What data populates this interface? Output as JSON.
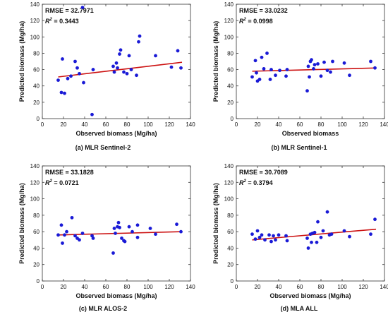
{
  "panel_captions": [
    "(a) MLR Sentinel-2",
    "(b) MLR Sentinel-1",
    "(c) MLR ALOS-2",
    "(d) MLA ALL"
  ],
  "colors": {
    "points": "#1a1ad6",
    "fit_line": "#cc1111",
    "axis": "#333333",
    "text": "#111111"
  },
  "chart_data": [
    {
      "type": "scatter",
      "title": "",
      "caption": "(a) MLR Sentinel-2",
      "xlabel": "Observed biomass (Mg/ha)",
      "ylabel": "Predicted biomass (Mg/ha)",
      "xlim": [
        0,
        140
      ],
      "ylim": [
        0,
        140
      ],
      "xticks": [
        0,
        20,
        40,
        60,
        80,
        100,
        120,
        140
      ],
      "yticks": [
        0,
        20,
        40,
        60,
        80,
        100,
        120,
        140
      ],
      "annotations": {
        "rmse": "RMSE = 32.7971",
        "r2_label": "R",
        "r2_exp": "2",
        "r2_value": " = 0.3443"
      },
      "fit_line": {
        "x": [
          15,
          132
        ],
        "y": [
          51,
          69
        ]
      },
      "points": [
        [
          15,
          47
        ],
        [
          18,
          32
        ],
        [
          19,
          73
        ],
        [
          21,
          31
        ],
        [
          24,
          49
        ],
        [
          27,
          52
        ],
        [
          31,
          70
        ],
        [
          33,
          62
        ],
        [
          35,
          55
        ],
        [
          38,
          136
        ],
        [
          39,
          44
        ],
        [
          47,
          5
        ],
        [
          48,
          60
        ],
        [
          67,
          64
        ],
        [
          68,
          57
        ],
        [
          70,
          68
        ],
        [
          71,
          62
        ],
        [
          73,
          79
        ],
        [
          74,
          84
        ],
        [
          77,
          57
        ],
        [
          80,
          55
        ],
        [
          82,
          77
        ],
        [
          84,
          60
        ],
        [
          89,
          53
        ],
        [
          91,
          94
        ],
        [
          92,
          101
        ],
        [
          107,
          77
        ],
        [
          122,
          63
        ],
        [
          128,
          83
        ],
        [
          131,
          62
        ]
      ]
    },
    {
      "type": "scatter",
      "title": "",
      "caption": "(b) MLR Sentinel-1",
      "xlabel": "Observed biomass",
      "ylabel": "Predicted biomass (Mg/ha)",
      "xlim": [
        0,
        140
      ],
      "ylim": [
        0,
        140
      ],
      "xticks": [
        0,
        20,
        40,
        60,
        80,
        100,
        120,
        140
      ],
      "yticks": [
        0,
        20,
        40,
        60,
        80,
        100,
        120,
        140
      ],
      "annotations": {
        "rmse": "RMSE = 33.0232",
        "r2_label": "R",
        "r2_exp": "2",
        "r2_value": " = 0.0998"
      },
      "fit_line": {
        "x": [
          15,
          132
        ],
        "y": [
          58,
          62
        ]
      },
      "points": [
        [
          15,
          51
        ],
        [
          18,
          71
        ],
        [
          19,
          56
        ],
        [
          20,
          46
        ],
        [
          22,
          48
        ],
        [
          24,
          75
        ],
        [
          26,
          61
        ],
        [
          29,
          80
        ],
        [
          32,
          48
        ],
        [
          33,
          60
        ],
        [
          37,
          53
        ],
        [
          41,
          59
        ],
        [
          47,
          52
        ],
        [
          48,
          60
        ],
        [
          67,
          34
        ],
        [
          68,
          64
        ],
        [
          69,
          51
        ],
        [
          70,
          70
        ],
        [
          71,
          72
        ],
        [
          73,
          61
        ],
        [
          74,
          66
        ],
        [
          77,
          67
        ],
        [
          80,
          52
        ],
        [
          83,
          69
        ],
        [
          86,
          59
        ],
        [
          89,
          57
        ],
        [
          91,
          70
        ],
        [
          102,
          68
        ],
        [
          107,
          53
        ],
        [
          127,
          70
        ],
        [
          131,
          62
        ]
      ]
    },
    {
      "type": "scatter",
      "title": "",
      "caption": "(c) MLR ALOS-2",
      "xlabel": "Observed biomass (Mg/ha)",
      "ylabel": "Predicted biomass (Mg/ha)",
      "xlim": [
        0,
        140
      ],
      "ylim": [
        0,
        140
      ],
      "xticks": [
        0,
        20,
        40,
        60,
        80,
        100,
        120,
        140
      ],
      "yticks": [
        0,
        20,
        40,
        60,
        80,
        100,
        120,
        140
      ],
      "annotations": {
        "rmse": "RMSE = 33.1828",
        "r2_label": "R",
        "r2_exp": "2",
        "r2_value": " = 0.0721"
      },
      "fit_line": {
        "x": [
          15,
          132
        ],
        "y": [
          56,
          60
        ]
      },
      "points": [
        [
          15,
          56
        ],
        [
          18,
          68
        ],
        [
          19,
          46
        ],
        [
          21,
          56
        ],
        [
          23,
          60
        ],
        [
          28,
          77
        ],
        [
          31,
          55
        ],
        [
          33,
          52
        ],
        [
          35,
          50
        ],
        [
          38,
          58
        ],
        [
          47,
          55
        ],
        [
          48,
          52
        ],
        [
          67,
          34
        ],
        [
          68,
          64
        ],
        [
          69,
          58
        ],
        [
          71,
          66
        ],
        [
          72,
          71
        ],
        [
          73,
          65
        ],
        [
          75,
          52
        ],
        [
          77,
          49
        ],
        [
          78,
          48
        ],
        [
          82,
          66
        ],
        [
          85,
          60
        ],
        [
          90,
          68
        ],
        [
          90,
          53
        ],
        [
          102,
          64
        ],
        [
          107,
          57
        ],
        [
          127,
          69
        ],
        [
          131,
          60
        ]
      ]
    },
    {
      "type": "scatter",
      "title": "",
      "caption": "(d) MLA ALL",
      "xlabel": "Observed biomass (Mg/ha)",
      "ylabel": "Predicted biomass (Mg/ha)",
      "xlim": [
        0,
        140
      ],
      "ylim": [
        0,
        140
      ],
      "xticks": [
        0,
        20,
        40,
        60,
        80,
        100,
        120,
        140
      ],
      "yticks": [
        0,
        20,
        40,
        60,
        80,
        100,
        120,
        140
      ],
      "annotations": {
        "rmse": "RMSE = 30.7089",
        "r2_label": "R",
        "r2_exp": "2",
        "r2_value": " = 0.3794"
      },
      "fit_line": {
        "x": [
          15,
          132
        ],
        "y": [
          50,
          63
        ]
      },
      "points": [
        [
          15,
          57
        ],
        [
          18,
          51
        ],
        [
          20,
          61
        ],
        [
          22,
          53
        ],
        [
          24,
          56
        ],
        [
          27,
          50
        ],
        [
          31,
          56
        ],
        [
          33,
          48
        ],
        [
          35,
          55
        ],
        [
          37,
          50
        ],
        [
          40,
          56
        ],
        [
          47,
          55
        ],
        [
          48,
          49
        ],
        [
          67,
          52
        ],
        [
          68,
          40
        ],
        [
          70,
          57
        ],
        [
          71,
          47
        ],
        [
          72,
          58
        ],
        [
          74,
          59
        ],
        [
          76,
          47
        ],
        [
          77,
          72
        ],
        [
          80,
          53
        ],
        [
          82,
          61
        ],
        [
          86,
          84
        ],
        [
          88,
          56
        ],
        [
          90,
          57
        ],
        [
          102,
          61
        ],
        [
          107,
          54
        ],
        [
          127,
          57
        ],
        [
          131,
          75
        ]
      ]
    }
  ]
}
